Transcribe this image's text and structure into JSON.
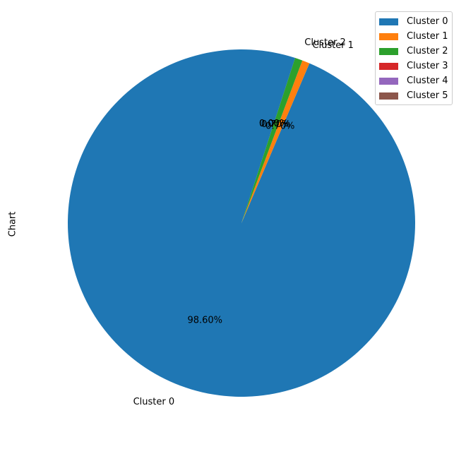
{
  "chart_data": {
    "type": "pie",
    "ylabel": "Chart",
    "labels": [
      "Cluster 0",
      "Cluster 1",
      "Cluster 2",
      "Cluster 3",
      "Cluster 4",
      "Cluster 5"
    ],
    "values": [
      98.6,
      0.7,
      0.7,
      0.0,
      0.0,
      0.0
    ],
    "autopct_labels": [
      "98.60%",
      "0.70%",
      "0.70%",
      "0.00%",
      "0.00%",
      "0.00%"
    ],
    "colors": [
      "#1f77b4",
      "#ff7f0e",
      "#2ca02c",
      "#d62728",
      "#9467bd",
      "#8c564b"
    ],
    "slice_labels_shown": [
      "Cluster 0",
      "Cluster 1",
      "Cluster 2",
      "",
      "",
      ""
    ],
    "legend": [
      "Cluster 0",
      "Cluster 1",
      "Cluster 2",
      "Cluster 3",
      "Cluster 4",
      "Cluster 5"
    ],
    "legend_position": "top-right",
    "start_angle_deg": 72,
    "direction": "counterclockwise"
  }
}
